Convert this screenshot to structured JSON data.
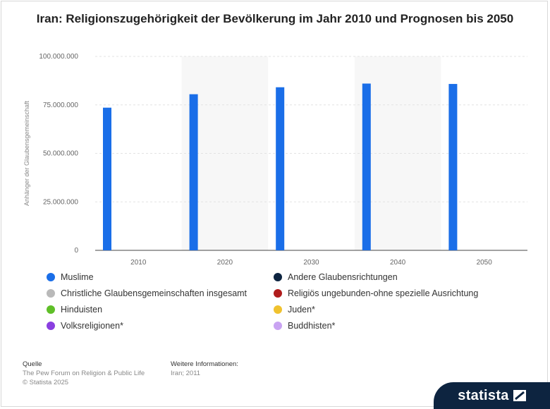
{
  "title": "Iran: Religionszugehörigkeit der Bevölkerung im Jahr 2010 und Prognosen bis 2050",
  "chart_data": {
    "type": "bar",
    "title": "Iran: Religionszugehörigkeit der Bevölkerung im Jahr 2010 und Prognosen bis 2050",
    "xlabel": "",
    "ylabel": "Anhänger der Glaubensgemeinschaft",
    "categories": [
      "2010",
      "2020",
      "2030",
      "2040",
      "2050"
    ],
    "ylim": [
      0,
      100000000
    ],
    "yticks": [
      0,
      25000000,
      50000000,
      75000000,
      100000000
    ],
    "ytick_labels": [
      "0",
      "25.000.000",
      "50.000.000",
      "75.000.000",
      "100.000.000"
    ],
    "grid": true,
    "legend_position": "bottom",
    "series": [
      {
        "name": "Muslime",
        "color": "#1a6ee8",
        "values": [
          73570000,
          80500000,
          84100000,
          86000000,
          85800000
        ]
      },
      {
        "name": "Andere Glaubensrichtungen",
        "color": "#0d2440",
        "values": [
          0,
          0,
          0,
          0,
          0
        ]
      },
      {
        "name": "Christliche Glaubensgemeinschaften insgesamt",
        "color": "#b9b9b9",
        "values": [
          0,
          0,
          0,
          0,
          0
        ]
      },
      {
        "name": "Religiös ungebunden-ohne spezielle Ausrichtung",
        "color": "#b01c1c",
        "values": [
          0,
          0,
          0,
          0,
          0
        ]
      },
      {
        "name": "Hinduisten",
        "color": "#5fbf28",
        "values": [
          0,
          0,
          0,
          0,
          0
        ]
      },
      {
        "name": "Juden*",
        "color": "#f0c22e",
        "values": [
          0,
          0,
          0,
          0,
          0
        ]
      },
      {
        "name": "Volksreligionen*",
        "color": "#8a3fe0",
        "values": [
          0,
          0,
          0,
          0,
          0
        ]
      },
      {
        "name": "Buddhisten*",
        "color": "#c9a3f2",
        "values": [
          0,
          0,
          0,
          0,
          0
        ]
      }
    ]
  },
  "footer": {
    "source_heading": "Quelle",
    "source_text": "The Pew Forum on Religion & Public Life",
    "copyright": "© Statista 2025",
    "info_heading": "Weitere Informationen:",
    "info_text": "Iran; 2011"
  },
  "brand": {
    "name": "statista",
    "icon": "statista-logo-icon",
    "bg_color": "#0d2440"
  }
}
